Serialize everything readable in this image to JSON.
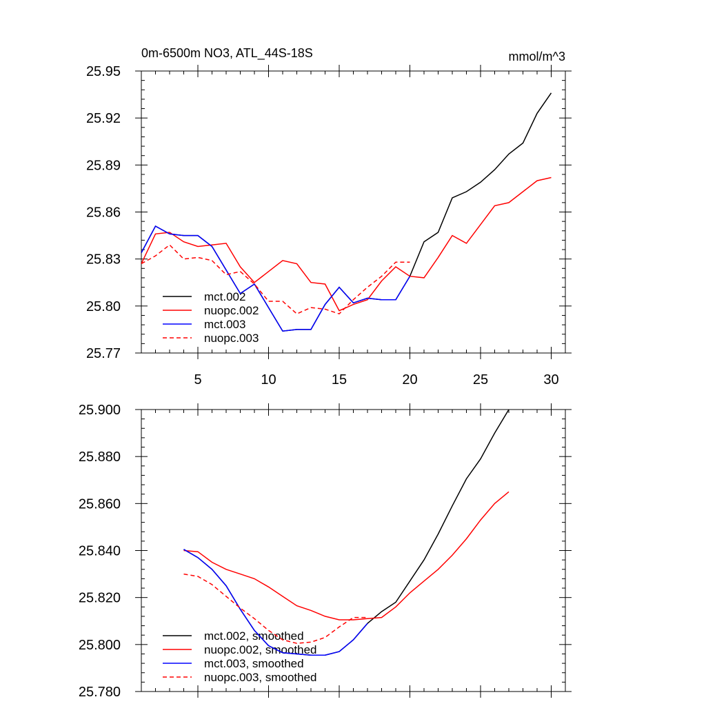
{
  "chart_data": [
    {
      "type": "line",
      "title": "0m-6500m NO3, ATL_44S-18S",
      "units": "mmol/m^3",
      "xlim": [
        1,
        31
      ],
      "ylim": [
        25.77,
        25.95
      ],
      "xticks": [
        5,
        10,
        15,
        20,
        25,
        30
      ],
      "yticks": [
        25.77,
        25.8,
        25.83,
        25.86,
        25.89,
        25.92,
        25.95
      ],
      "yticks_text": [
        "25.77",
        "25.80",
        "25.83",
        "25.86",
        "25.89",
        "25.92",
        "25.95"
      ],
      "legend_position": "bottom-left",
      "series": [
        {
          "name": "mct.002",
          "color": "#000000",
          "dash": "",
          "x": [
            1,
            2,
            3,
            4,
            5,
            6,
            7,
            8,
            9,
            10,
            11,
            12,
            13,
            14,
            15,
            16,
            17,
            18,
            19,
            20,
            21,
            22,
            23,
            24,
            25,
            26,
            27,
            28,
            29,
            30
          ],
          "y": [
            25.834,
            25.851,
            25.846,
            25.845,
            25.845,
            25.838,
            25.823,
            25.808,
            25.814,
            25.799,
            25.784,
            25.785,
            25.785,
            25.801,
            25.812,
            25.802,
            25.805,
            25.804,
            25.804,
            25.819,
            25.841,
            25.847,
            25.869,
            25.873,
            25.879,
            25.887,
            25.897,
            25.904,
            25.923,
            25.936
          ]
        },
        {
          "name": "nuopc.002",
          "color": "#ff0000",
          "dash": "",
          "x": [
            1,
            2,
            3,
            4,
            5,
            6,
            7,
            8,
            9,
            10,
            11,
            12,
            13,
            14,
            15,
            16,
            17,
            18,
            19,
            20,
            21,
            22,
            23,
            24,
            25,
            26,
            27,
            28,
            29,
            30
          ],
          "y": [
            25.827,
            25.846,
            25.847,
            25.841,
            25.838,
            25.839,
            25.84,
            25.825,
            25.815,
            25.822,
            25.829,
            25.827,
            25.815,
            25.814,
            25.797,
            25.801,
            25.804,
            25.816,
            25.825,
            25.819,
            25.818,
            25.831,
            25.845,
            25.84,
            25.852,
            25.864,
            25.866,
            25.873,
            25.88,
            25.882
          ]
        },
        {
          "name": "mct.003",
          "color": "#0000ff",
          "dash": "",
          "x": [
            1,
            2,
            3,
            4,
            5,
            6,
            7,
            8,
            9,
            10,
            11,
            12,
            13,
            14,
            15,
            16,
            17,
            18,
            19,
            20
          ],
          "y": [
            25.834,
            25.851,
            25.846,
            25.845,
            25.845,
            25.838,
            25.823,
            25.808,
            25.814,
            25.799,
            25.784,
            25.785,
            25.785,
            25.801,
            25.812,
            25.802,
            25.805,
            25.804,
            25.804,
            25.819
          ]
        },
        {
          "name": "nuopc.003",
          "color": "#ff0000",
          "dash": "6,4",
          "x": [
            1,
            2,
            3,
            4,
            5,
            6,
            7,
            8,
            9,
            10,
            11,
            12,
            13,
            14,
            15,
            16,
            17,
            18,
            19,
            20
          ],
          "y": [
            25.827,
            25.832,
            25.839,
            25.83,
            25.831,
            25.829,
            25.82,
            25.822,
            25.814,
            25.803,
            25.803,
            25.795,
            25.799,
            25.798,
            25.795,
            25.804,
            25.812,
            25.819,
            25.828,
            25.828
          ]
        }
      ]
    },
    {
      "type": "line",
      "xlim": [
        1,
        31
      ],
      "ylim": [
        25.78,
        25.9
      ],
      "xticks": [
        5,
        10,
        15,
        20,
        25,
        30
      ],
      "yticks": [
        25.78,
        25.8,
        25.82,
        25.84,
        25.86,
        25.88,
        25.9
      ],
      "yticks_text": [
        "25.780",
        "25.800",
        "25.820",
        "25.840",
        "25.860",
        "25.880",
        "25.900"
      ],
      "legend_position": "bottom-left",
      "series": [
        {
          "name": "mct.002, smoothed",
          "color": "#000000",
          "dash": "",
          "x": [
            4,
            5,
            6,
            7,
            8,
            9,
            10,
            11,
            12,
            13,
            14,
            15,
            16,
            17,
            18,
            19,
            20,
            21,
            22,
            23,
            24,
            25,
            26,
            27
          ],
          "y": [
            25.8405,
            25.837,
            25.832,
            25.825,
            25.815,
            25.806,
            25.7995,
            25.7965,
            25.796,
            25.7955,
            25.7955,
            25.797,
            25.802,
            25.809,
            25.814,
            25.818,
            25.827,
            25.836,
            25.847,
            25.859,
            25.8705,
            25.879,
            25.89,
            25.9
          ]
        },
        {
          "name": "nuopc.002, smoothed",
          "color": "#ff0000",
          "dash": "",
          "x": [
            4,
            5,
            6,
            7,
            8,
            9,
            10,
            11,
            12,
            13,
            14,
            15,
            16,
            17,
            18,
            19,
            20,
            21,
            22,
            23,
            24,
            25,
            26,
            27
          ],
          "y": [
            25.84,
            25.8395,
            25.835,
            25.832,
            25.83,
            25.828,
            25.8245,
            25.8205,
            25.8165,
            25.8145,
            25.812,
            25.8105,
            25.8105,
            25.811,
            25.8115,
            25.816,
            25.822,
            25.827,
            25.832,
            25.838,
            25.845,
            25.853,
            25.86,
            25.865
          ]
        },
        {
          "name": "mct.003, smoothed",
          "color": "#0000ff",
          "dash": "",
          "x": [
            4,
            5,
            6,
            7,
            8,
            9,
            10,
            11,
            12,
            13,
            14,
            15,
            16,
            17
          ],
          "y": [
            25.8405,
            25.837,
            25.832,
            25.825,
            25.815,
            25.806,
            25.7995,
            25.7965,
            25.796,
            25.7955,
            25.7955,
            25.797,
            25.802,
            25.809
          ]
        },
        {
          "name": "nuopc.003, smoothed",
          "color": "#ff0000",
          "dash": "6,4",
          "x": [
            4,
            5,
            6,
            7,
            8,
            9,
            10,
            11,
            12,
            13,
            14,
            15,
            16,
            17
          ],
          "y": [
            25.83,
            25.829,
            25.8255,
            25.8205,
            25.8155,
            25.811,
            25.806,
            25.802,
            25.8005,
            25.801,
            25.803,
            25.8075,
            25.8115,
            25.8115
          ]
        }
      ]
    }
  ]
}
